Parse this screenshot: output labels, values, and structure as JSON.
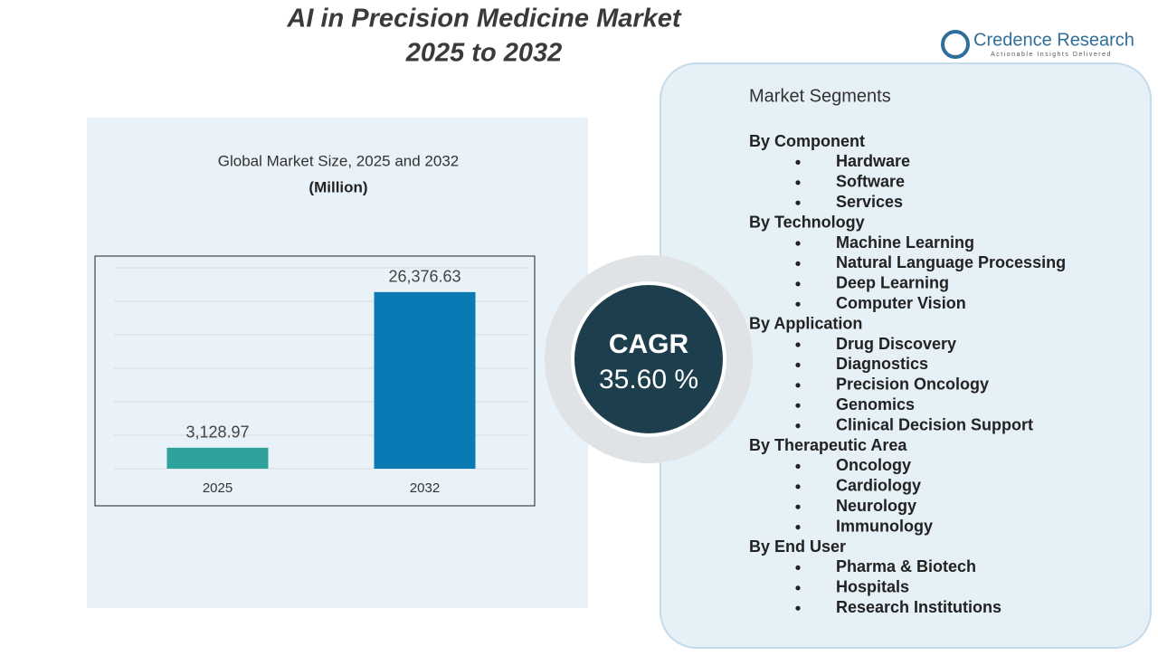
{
  "header": {
    "title_line1": "AI in Precision Medicine Market",
    "title_line2": "2025 to 2032",
    "brand": "Credence Research",
    "tagline": "Actionable Insights Delivered"
  },
  "chart_data": {
    "type": "bar",
    "subtitle": "Global Market Size, 2025 and 2032",
    "unit": "(Million)",
    "categories": [
      "2025",
      "2032"
    ],
    "values": [
      3128.97,
      26376.63
    ],
    "value_labels": [
      "3,128.97",
      "26,376.63"
    ],
    "colors": [
      "#2fa39b",
      "#0a7ab5"
    ],
    "ylim": [
      0,
      30000
    ],
    "yticks": [
      0,
      5000,
      10000,
      15000,
      20000,
      25000,
      30000
    ],
    "grid": true
  },
  "cagr": {
    "label": "CAGR",
    "value": "35.60 %"
  },
  "segments": {
    "heading": "Market Segments",
    "groups": [
      {
        "title": "By Component",
        "items": [
          "Hardware",
          "Software",
          "Services"
        ]
      },
      {
        "title": "By Technology",
        "items": [
          "Machine Learning",
          "Natural Language Processing",
          "Deep Learning",
          "Computer Vision"
        ]
      },
      {
        "title": "By Application",
        "items": [
          "Drug Discovery",
          "Diagnostics",
          "Precision Oncology",
          "Genomics",
          "Clinical Decision Support"
        ]
      },
      {
        "title": "By Therapeutic Area",
        "items": [
          "Oncology",
          "Cardiology",
          "Neurology",
          "Immunology"
        ]
      },
      {
        "title": "By End User",
        "items": [
          "Pharma & Biotech",
          "Hospitals",
          "Research Institutions"
        ]
      }
    ]
  }
}
